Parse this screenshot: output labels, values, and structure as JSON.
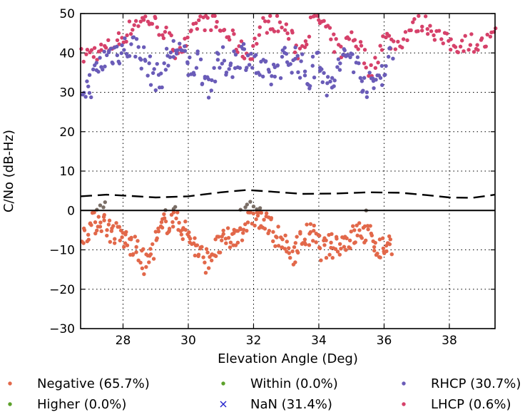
{
  "chart_data": {
    "type": "scatter",
    "title": "",
    "xlabel": "Elevation Angle (Deg)",
    "ylabel": "C/No (dB-Hz)",
    "xlim": [
      26.7,
      39.4
    ],
    "ylim": [
      -30,
      50
    ],
    "x_ticks": [
      28,
      30,
      32,
      34,
      36,
      38
    ],
    "x_tick_labels": [
      "28",
      "30",
      "32",
      "34",
      "36",
      "38"
    ],
    "y_ticks": [
      -30,
      -20,
      -10,
      0,
      10,
      20,
      30,
      40,
      50
    ],
    "y_tick_labels": [
      "−30",
      "−20",
      "−10",
      "0",
      "10",
      "20",
      "30",
      "40",
      "50"
    ],
    "grid": true,
    "legend_position": "bottom",
    "legend": [
      {
        "label": "Negative (65.7%)",
        "marker": "dot",
        "color": "#e2684a"
      },
      {
        "label": "Higher (0.0%)",
        "marker": "dot",
        "color": "#5ca12a"
      },
      {
        "label": "Within (0.0%)",
        "marker": "dot",
        "color": "#5ca12a"
      },
      {
        "label": "NaN (31.4%)",
        "marker": "x",
        "color": "#2222cc"
      },
      {
        "label": "RHCP (30.7%)",
        "marker": "dot",
        "color": "#6a5cb8"
      },
      {
        "label": "LHCP (0.6%)",
        "marker": "dot",
        "color": "#d6416a"
      }
    ],
    "colors": {
      "negative": "#e2684a",
      "within_upper": "#7a6e66",
      "rhcp": "#6a5cb8",
      "lhcp": "#d6416a",
      "threshold": "#000000"
    },
    "threshold_line": {
      "name": "",
      "style": "dashed",
      "x": [
        26.7,
        27.5,
        28.2,
        29.0,
        30.0,
        31.0,
        31.8,
        32.5,
        33.5,
        34.5,
        35.5,
        36.5,
        37.3,
        38.0,
        38.7,
        39.4
      ],
      "y": [
        3.6,
        4.0,
        3.7,
        3.3,
        3.6,
        4.6,
        5.2,
        4.8,
        4.2,
        4.3,
        4.6,
        4.5,
        3.9,
        3.3,
        3.2,
        4.0
      ]
    },
    "series": [
      {
        "key": "lhcp",
        "trend_x": [
          26.75,
          27.0,
          27.5,
          28.0,
          28.4,
          28.8,
          29.2,
          29.6,
          30.0,
          30.3,
          30.7,
          31.0,
          31.3,
          31.6,
          31.9,
          32.0,
          32.3,
          32.6,
          33.0,
          33.4,
          33.8,
          34.1,
          34.4,
          34.7,
          35.0,
          35.3,
          35.6,
          36.0,
          36.4,
          36.8,
          37.2,
          37.5,
          37.8,
          38.2,
          38.6,
          39.0,
          39.4
        ],
        "trend_y": [
          39,
          40,
          41,
          44,
          48,
          48.5,
          46,
          41,
          42,
          48,
          48,
          46,
          44,
          41,
          39,
          42,
          47,
          48,
          46,
          40,
          48,
          48,
          43,
          40,
          45,
          41,
          35,
          44,
          42,
          46,
          48,
          46,
          43,
          42,
          43,
          42,
          44
        ],
        "spread": 2.4,
        "count": 230
      },
      {
        "key": "rhcp",
        "x_range": [
          26.75,
          36.25
        ],
        "trend_x": [
          26.75,
          27.0,
          27.3,
          27.6,
          28.0,
          28.4,
          28.8,
          29.1,
          29.4,
          29.7,
          30.0,
          30.3,
          30.6,
          31.0,
          31.3,
          31.6,
          31.9,
          32.2,
          32.5,
          32.9,
          33.3,
          33.7,
          34.0,
          34.3,
          34.7,
          35.0,
          35.3,
          35.6,
          35.9,
          36.2
        ],
        "trend_y": [
          31,
          32,
          37,
          40,
          41,
          42,
          36,
          33,
          39,
          42,
          36,
          38,
          32,
          38,
          37,
          40,
          39,
          35,
          34,
          38,
          39,
          33,
          40,
          30,
          38,
          40,
          34,
          31,
          35,
          39
        ],
        "spread": 3.8,
        "count": 230
      },
      {
        "key": "negative",
        "x_range": [
          26.75,
          36.25
        ],
        "trend_x": [
          26.75,
          27.0,
          27.3,
          27.6,
          28.0,
          28.4,
          28.7,
          29.0,
          29.3,
          29.6,
          29.9,
          30.2,
          30.5,
          30.8,
          31.1,
          31.4,
          31.7,
          32.0,
          32.3,
          32.6,
          32.9,
          33.2,
          33.5,
          33.8,
          34.1,
          34.4,
          34.7,
          35.0,
          35.3,
          35.6,
          35.9,
          36.2
        ],
        "trend_y": [
          -6,
          -4,
          -2,
          -5,
          -7,
          -10,
          -14,
          -8,
          -3,
          -2,
          -5,
          -9,
          -13,
          -10,
          -8,
          -7,
          -4,
          -1,
          -3,
          -5,
          -9,
          -11,
          -7,
          -6,
          -10,
          -9,
          -8,
          -7,
          -5,
          -7,
          -10,
          -8
        ],
        "spread": 3.2,
        "count": 300
      },
      {
        "key": "within_upper",
        "x": [
          27.2,
          27.3,
          27.4,
          27.45,
          29.3,
          29.55,
          29.6,
          31.6,
          31.75,
          31.8,
          31.9,
          32.0,
          32.1,
          32.2,
          35.45
        ],
        "y": [
          0.2,
          1.3,
          0.8,
          2.1,
          0.1,
          0.4,
          0.9,
          0.2,
          0.8,
          1.5,
          2.2,
          1.0,
          0.3,
          0.6,
          0.0
        ]
      }
    ]
  }
}
